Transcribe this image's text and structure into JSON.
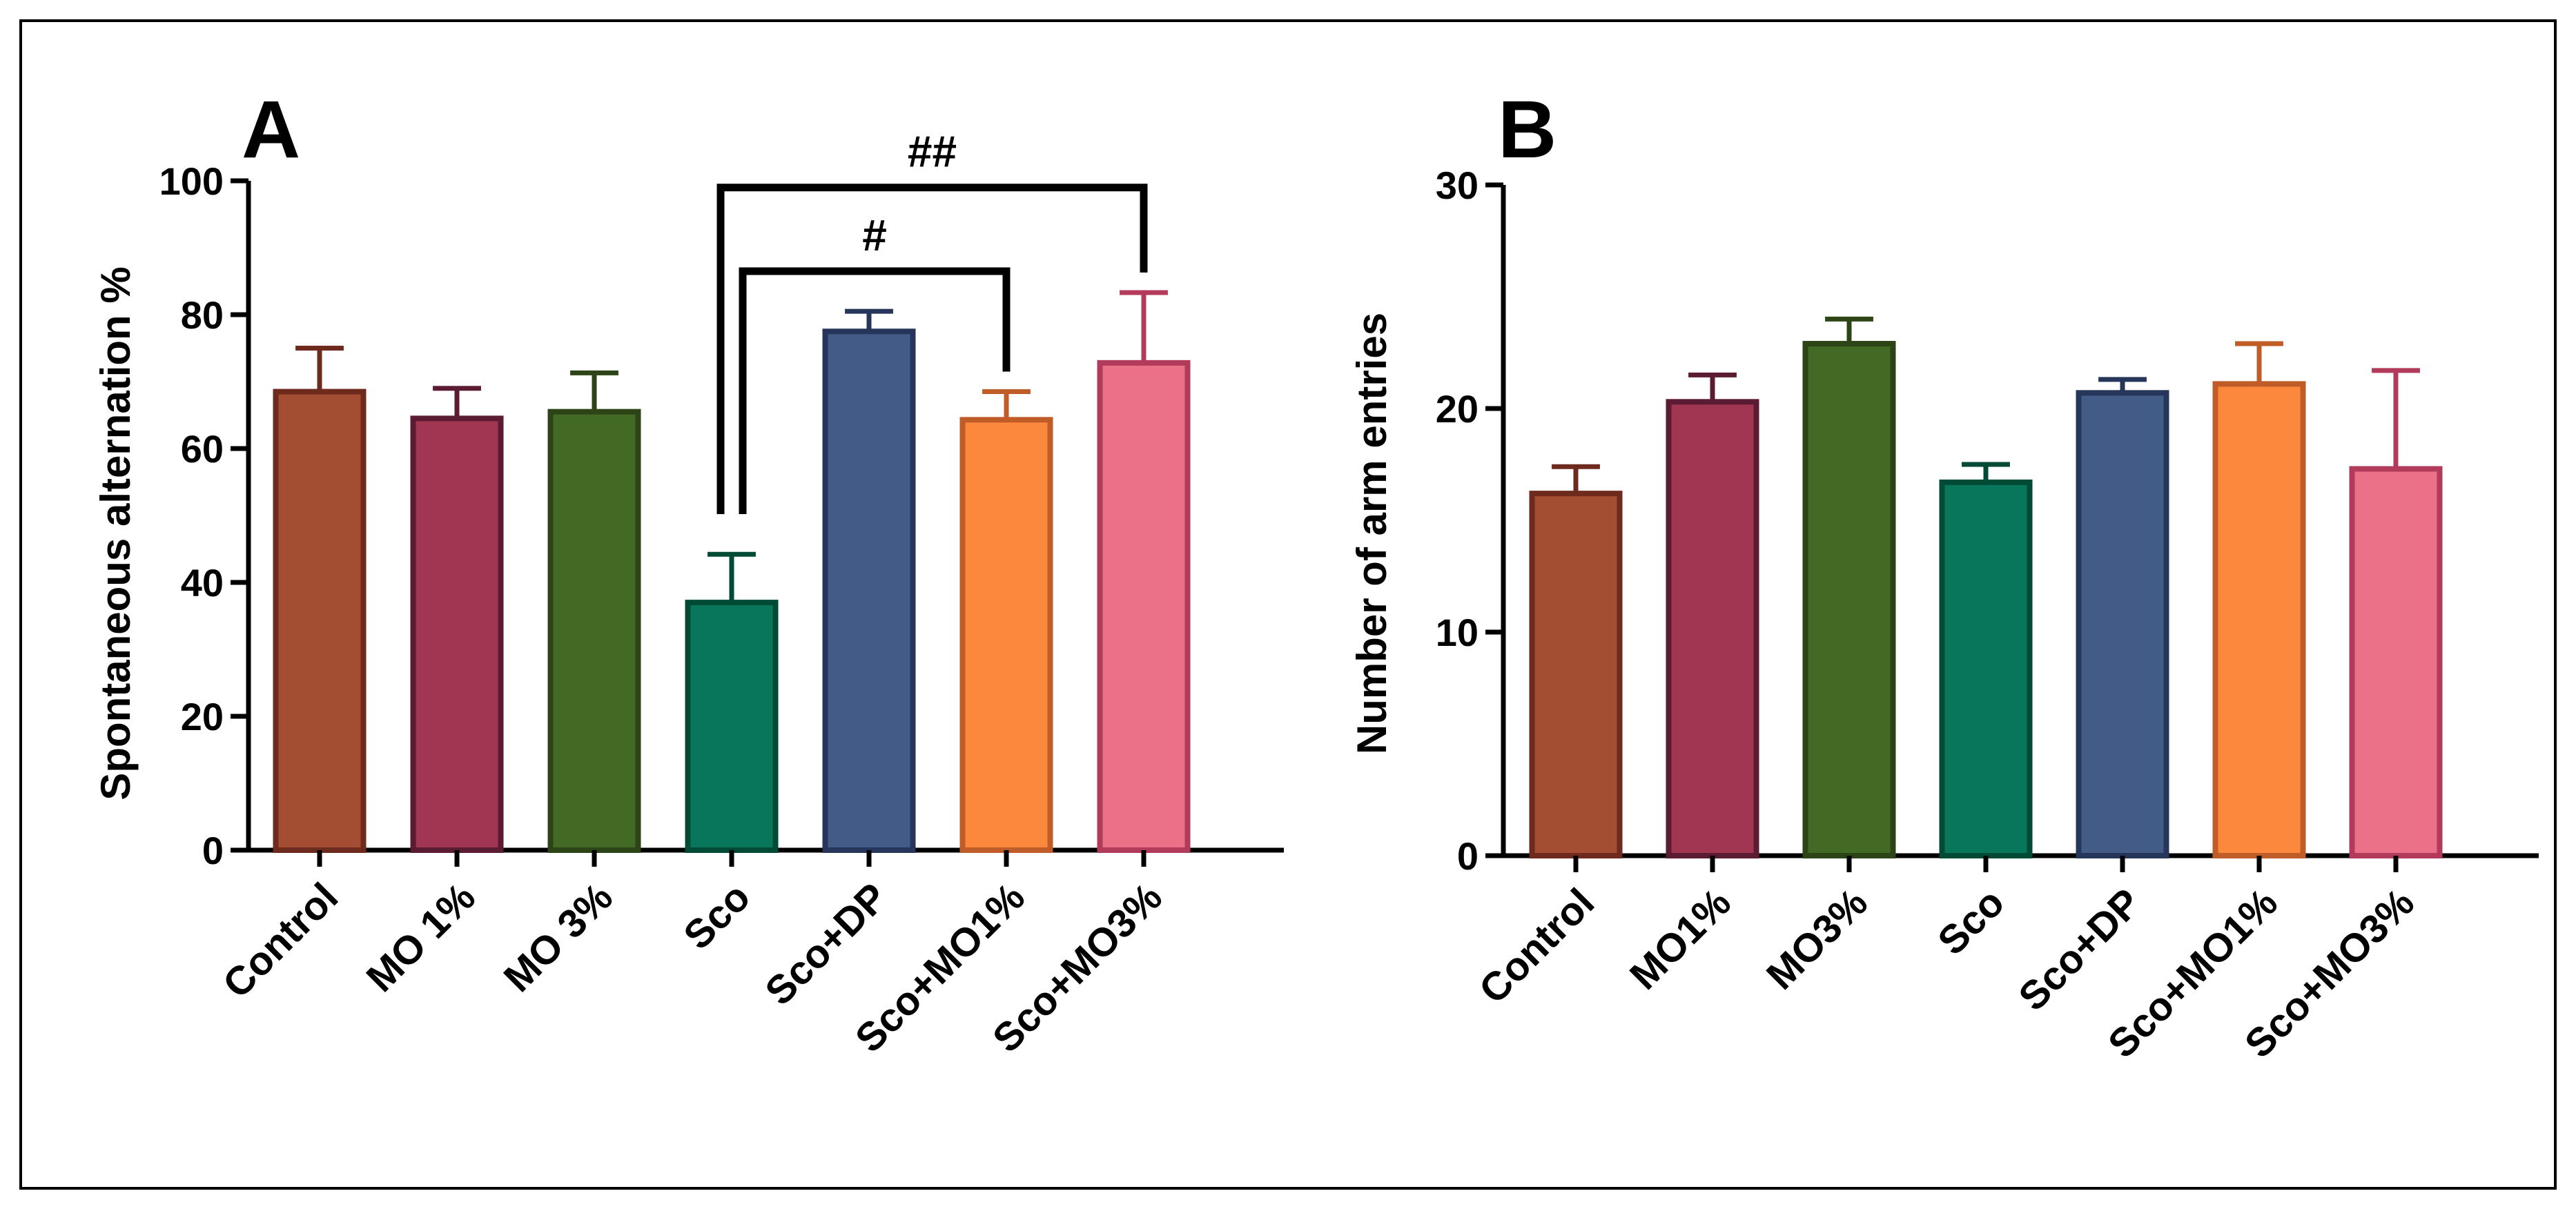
{
  "chart_data": [
    {
      "panel": "A",
      "type": "bar",
      "ylabel": "Spontaneous alternation %",
      "xlabel": "",
      "ylim": [
        0,
        100
      ],
      "yticks": [
        0,
        20,
        40,
        60,
        80,
        100
      ],
      "ytick_labels": [
        "0",
        "20",
        "40",
        "60",
        "80",
        "100"
      ],
      "categories": [
        "Control",
        "MO 1%",
        "MO 3%",
        "Sco",
        "Sco+DP",
        "Sco+MO1%",
        "Sco+MO3%"
      ],
      "values": [
        68.5,
        64.5,
        65.5,
        37,
        77.5,
        64.3,
        72.8
      ],
      "errors": [
        6.5,
        4.5,
        5.8,
        7.2,
        3,
        4.2,
        10.5
      ],
      "fill_colors": [
        "#a34d32",
        "#a13653",
        "#436a25",
        "#08765b",
        "#435b87",
        "#fb883d",
        "#ea7187"
      ],
      "edge_colors": [
        "#6e2a1c",
        "#5a1b33",
        "#2c4416",
        "#004a36",
        "#26365a",
        "#bf5c28",
        "#b23a5a"
      ],
      "significance": [
        {
          "from": "Sco",
          "to": "Sco+MO1%",
          "label": "#"
        },
        {
          "from": "Sco",
          "to": "Sco+MO3%",
          "label": "##"
        }
      ]
    },
    {
      "panel": "B",
      "type": "bar",
      "ylabel": "Number of arm entries",
      "xlabel": "",
      "ylim": [
        0,
        30
      ],
      "yticks": [
        0,
        10,
        20,
        30
      ],
      "ytick_labels": [
        "0",
        "10",
        "20",
        "30"
      ],
      "categories": [
        "Control",
        "MO1%",
        "MO3%",
        "Sco",
        "Sco+DP",
        "Sco+MO1%",
        "Sco+MO3%"
      ],
      "values": [
        16.2,
        20.3,
        22.9,
        16.7,
        20.7,
        21.1,
        17.3
      ],
      "errors": [
        1.2,
        1.2,
        1.1,
        0.8,
        0.6,
        1.8,
        4.4
      ],
      "fill_colors": [
        "#a34d32",
        "#a13653",
        "#436a25",
        "#08765b",
        "#435b87",
        "#fb883d",
        "#ea7187"
      ],
      "edge_colors": [
        "#6e2a1c",
        "#5a1b33",
        "#2c4416",
        "#004a36",
        "#26365a",
        "#bf5c28",
        "#b23a5a"
      ],
      "significance": []
    }
  ]
}
